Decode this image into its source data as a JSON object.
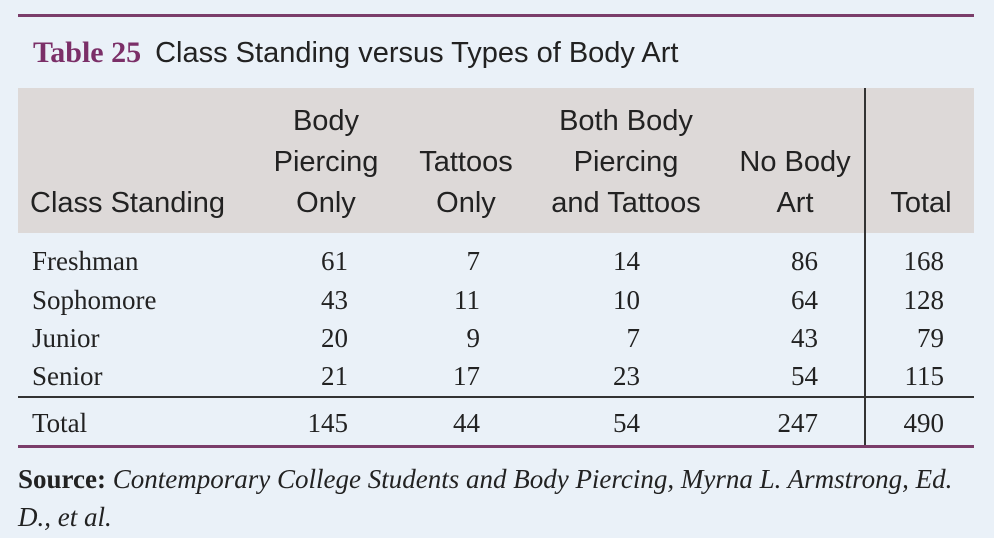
{
  "table": {
    "label": "Table 25",
    "title": "Class Standing versus Types of Body Art",
    "headers": [
      [
        "Class Standing"
      ],
      [
        "Body",
        "Piercing",
        "Only"
      ],
      [
        "Tattoos",
        "Only"
      ],
      [
        "Both Body",
        "Piercing",
        "and Tattoos"
      ],
      [
        "No Body",
        "Art"
      ],
      [
        "Total"
      ]
    ],
    "rows": [
      {
        "label": "Freshman",
        "values": [
          "61",
          "7",
          "14",
          "86",
          "168"
        ]
      },
      {
        "label": "Sophomore",
        "values": [
          "43",
          "11",
          "10",
          "64",
          "128"
        ]
      },
      {
        "label": "Junior",
        "values": [
          "20",
          "9",
          "7",
          "43",
          "79"
        ]
      },
      {
        "label": "Senior",
        "values": [
          "21",
          "17",
          "23",
          "54",
          "115"
        ]
      }
    ],
    "total_row": {
      "label": "Total",
      "values": [
        "145",
        "44",
        "54",
        "247",
        "490"
      ]
    }
  },
  "source": {
    "label": "Source:",
    "text": "Contemporary College Students and Body Piercing, Myrna L. Armstrong, Ed. D., et al."
  },
  "colors": {
    "accent": "#7b2f68",
    "header_band": "#ddd9d8",
    "background": "#eaf1f8"
  }
}
